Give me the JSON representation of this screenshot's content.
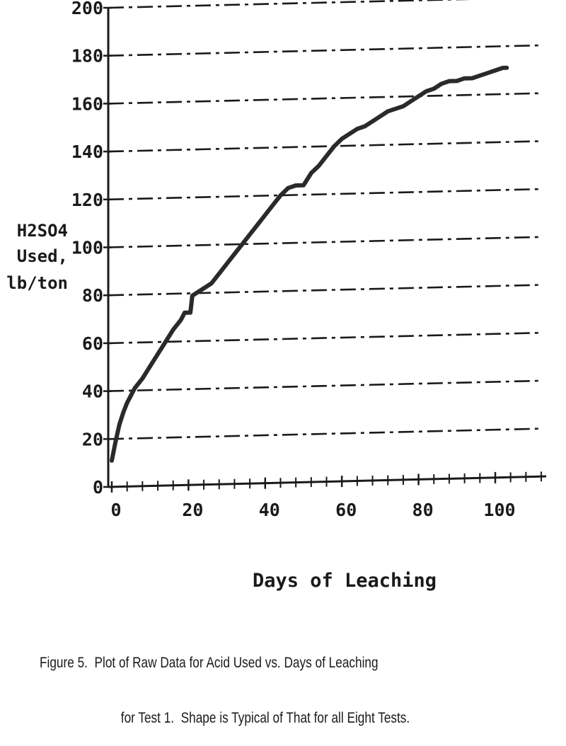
{
  "chart_data": {
    "type": "line",
    "title": "",
    "xlabel": "Days of Leaching",
    "ylabel_lines": [
      "H2SO4",
      "Used,",
      "lb/ton"
    ],
    "xlim": [
      0,
      112
    ],
    "ylim": [
      0,
      200
    ],
    "x_ticks": [
      0,
      20,
      40,
      60,
      80,
      100
    ],
    "x_tick_labels": [
      "0",
      "20",
      "40",
      "60",
      "80",
      "100"
    ],
    "y_ticks": [
      0,
      20,
      40,
      60,
      80,
      100,
      120,
      140,
      160,
      180,
      200
    ],
    "y_tick_labels": [
      "0",
      "20",
      "40",
      "60",
      "80",
      "100",
      "120",
      "140",
      "160",
      "180",
      "200"
    ],
    "grid": "horizontal dash-dot",
    "series": [
      {
        "x": [
          0,
          0.5,
          1,
          2,
          3,
          4,
          5,
          6,
          8,
          10,
          12,
          14,
          16,
          18,
          19,
          20,
          20.5,
          21,
          22,
          24,
          26,
          28,
          30,
          32,
          34,
          36,
          38,
          40,
          42,
          44,
          46,
          48,
          50,
          52,
          54,
          56,
          58,
          60,
          62,
          64,
          66,
          68,
          70,
          72,
          74,
          76,
          78,
          80,
          82,
          84,
          86,
          88,
          90,
          92,
          94,
          96,
          98,
          100,
          102,
          103
        ],
        "y": [
          11,
          15,
          19,
          26,
          31,
          35,
          38,
          41,
          45,
          50,
          55,
          60,
          65,
          69,
          72,
          72,
          72,
          79,
          80,
          82,
          84,
          88,
          92,
          96,
          100,
          104,
          108,
          112,
          116,
          120,
          123,
          124,
          124,
          129,
          132,
          136,
          140,
          143,
          145,
          147,
          148,
          150,
          152,
          154,
          155,
          156,
          158,
          160,
          162,
          163,
          165,
          166,
          166,
          167,
          167,
          168,
          169,
          170,
          171,
          171
        ]
      }
    ]
  },
  "caption": {
    "line1": "Figure 5.  Plot of Raw Data for Acid Used vs. Days of Leaching",
    "line2": "for Test 1.  Shape is Typical of That for all Eight Tests."
  }
}
